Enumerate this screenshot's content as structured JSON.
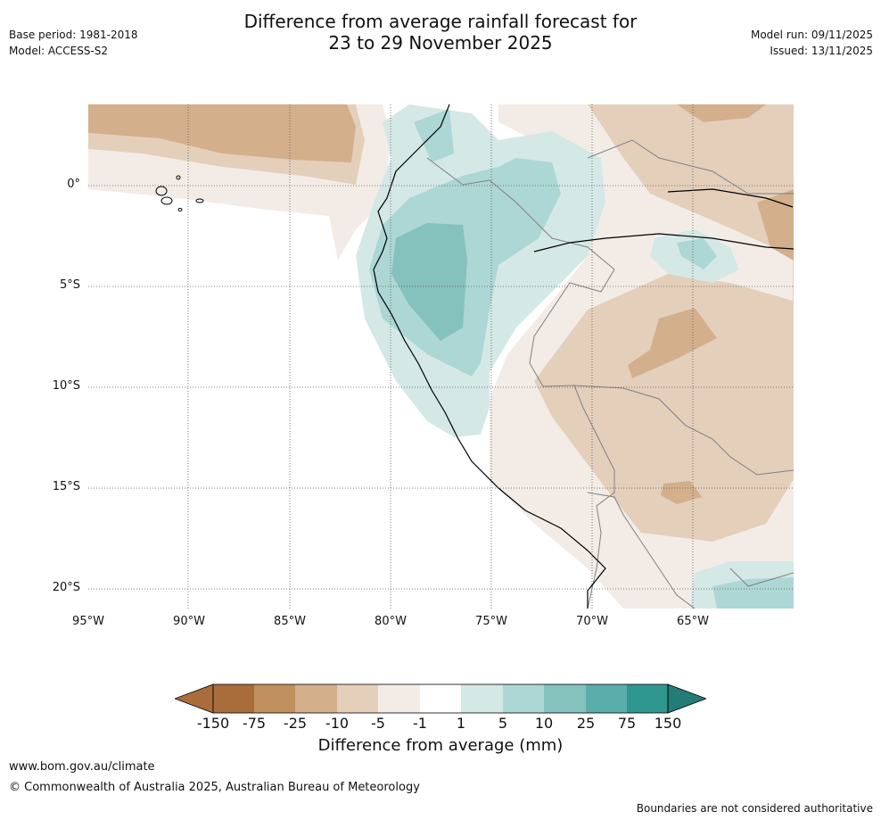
{
  "header": {
    "title_line1": "Difference from average rainfall forecast for",
    "title_line2": "23 to 29 November 2025",
    "base_period": "Base period: 1981-2018",
    "model": "Model: ACCESS-S2",
    "model_run": "Model run: 09/11/2025",
    "issued": "Issued: 13/11/2025"
  },
  "map": {
    "region": "Western South America (Ecuador, Peru, western Brazil, Bolivia)",
    "lat_labels": [
      "0°",
      "5°S",
      "10°S",
      "15°S",
      "20°S"
    ],
    "lon_labels": [
      "95°W",
      "90°W",
      "85°W",
      "80°W",
      "75°W",
      "70°W",
      "65°W"
    ],
    "colors": {
      "dry_150": "#a86d3b",
      "dry_75": "#c0905e",
      "dry_25": "#d3af8c",
      "dry_10": "#e4cfbb",
      "dry_5": "#f3ece6",
      "neutral": "#ffffff",
      "wet_1": "#d4e8e6",
      "wet_5": "#acd7d4",
      "wet_10": "#85c1bd",
      "wet_25": "#5badaa",
      "wet_75": "#2f9690",
      "wet_150": "#247c77",
      "coast": "#000000",
      "border": "#808080"
    }
  },
  "colorbar": {
    "ticks": [
      "-150",
      "-75",
      "-25",
      "-10",
      "-5",
      "-1",
      "1",
      "5",
      "10",
      "25",
      "75",
      "150"
    ],
    "title": "Difference from average (mm)"
  },
  "footer": {
    "url": "www.bom.gov.au/climate",
    "copyright": "© Commonwealth of Australia 2025, Australian Bureau of Meteorology",
    "disclaimer": "Boundaries are not considered authoritative"
  }
}
